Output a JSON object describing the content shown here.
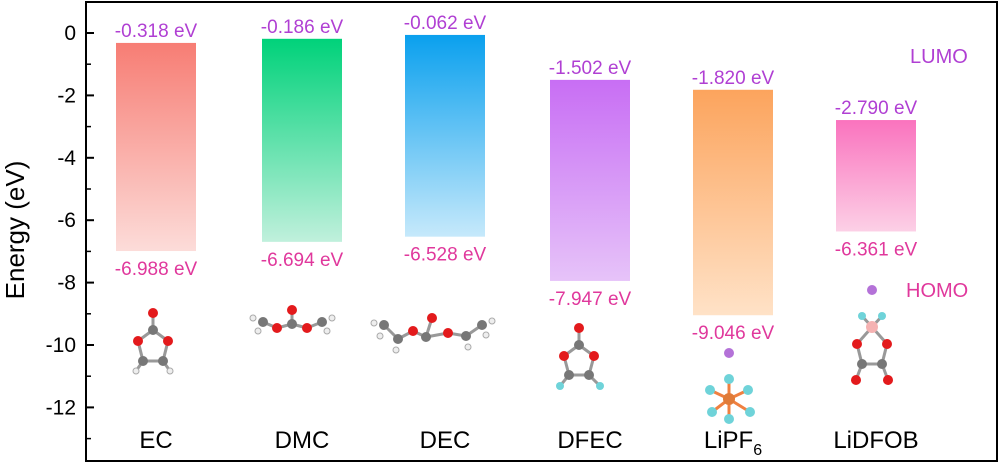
{
  "chart_data": {
    "type": "bar",
    "ylabel": "Energy (eV)",
    "ylim": [
      -13,
      1
    ],
    "yticks": [
      0,
      -2,
      -4,
      -6,
      -8,
      -10,
      -12
    ],
    "grid": false,
    "categories": [
      "EC",
      "DMC",
      "DEC",
      "DFEC",
      "LiPF",
      "LiDFOB"
    ],
    "category_subscripts": [
      "",
      "",
      "",
      "",
      "6",
      ""
    ],
    "lumo": [
      -0.318,
      -0.186,
      -0.062,
      -1.502,
      -1.82,
      -2.79
    ],
    "homo": [
      -6.988,
      -6.694,
      -6.528,
      -7.947,
      -9.046,
      -6.361
    ],
    "lumo_labels": [
      "-0.318 eV",
      "-0.186 eV",
      "-0.062 eV",
      "-1.502 eV",
      "-1.820 eV",
      "-2.790 eV"
    ],
    "homo_labels": [
      "-6.988 eV",
      "-6.694 eV",
      "-6.528 eV",
      "-7.947 eV",
      "-9.046 eV",
      "-6.361 eV"
    ],
    "colors_top": [
      "#f77d74",
      "#00d27a",
      "#0aa0ee",
      "#c86ef4",
      "#fca45d",
      "#fa73be"
    ],
    "colors_bottom": [
      "#fcdcd9",
      "#c0f0dc",
      "#c6e9fb",
      "#e6c3f9",
      "#ffe2c7",
      "#fcd0e6"
    ],
    "lumo_label_color": "#b03fd3",
    "homo_label_color": "#e0389c",
    "annotations": {
      "lumo": "LUMO",
      "homo": "HOMO"
    },
    "molecule_icons": [
      "ec-molecule-icon",
      "dmc-molecule-icon",
      "dec-molecule-icon",
      "dfec-molecule-icon",
      "lipf6-molecule-icon",
      "lidfob-molecule-icon"
    ]
  }
}
